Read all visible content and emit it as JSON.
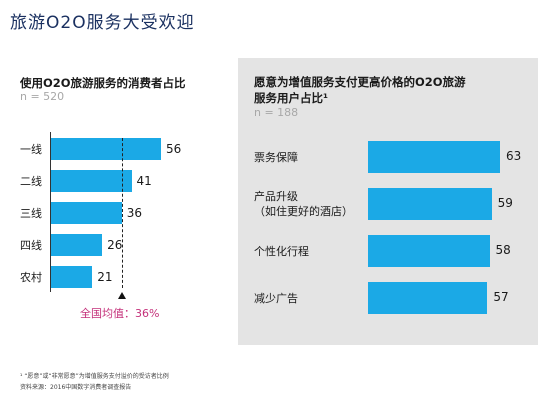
{
  "title": "旅游O2O服务大受欢迎",
  "chart_data": [
    {
      "type": "bar",
      "orientation": "horizontal",
      "title": "使用O2O旅游服务的消费者占比",
      "sample": "n = 520",
      "categories": [
        "一线",
        "二线",
        "三线",
        "四线",
        "农村"
      ],
      "values": [
        56,
        41,
        36,
        26,
        21
      ],
      "average": {
        "label": "全国均值：",
        "value_text": "36%",
        "value": 36
      },
      "color": "#1ba9e6",
      "xlim": [
        0,
        75
      ]
    },
    {
      "type": "bar",
      "orientation": "horizontal",
      "title": "愿意为增值服务支付更高价格的O2O旅游服务用户占比¹",
      "title_line1": "愿意为增值服务支付更高价格的O2O旅游",
      "title_line2": "服务用户占比¹",
      "sample": "n = 188",
      "categories": [
        "票务保障",
        "产品升级\n（如住更好的酒店）",
        "个性化行程",
        "减少广告"
      ],
      "values": [
        63,
        59,
        58,
        57
      ],
      "color": "#1ba9e6",
      "xlim": [
        0,
        75
      ]
    }
  ],
  "footnote": "¹ “愿意”或“非常愿意”为增值服务支付溢价的受访者比例",
  "source": "资料来源：2016中国数字消费者调查报告"
}
